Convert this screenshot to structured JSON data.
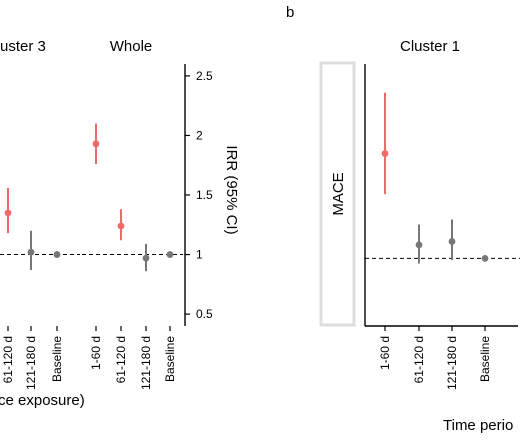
{
  "panel_tags": [
    "b"
  ],
  "x_tick_labels": [
    "1-60 d",
    "61-120 d",
    "121-180 d",
    "Baseline"
  ],
  "left_axis_title": "IRR (95% CI)",
  "left_xlabel_fragment": "ce exposure)",
  "right_xlabel_fragment": "Time perio",
  "strip_label": "MACE",
  "colors": {
    "highlight": "#f0696a",
    "neutral": "#777777",
    "strip_border": "#dddddd"
  },
  "chart_data": [
    {
      "type": "scatter",
      "title": "uster 3",
      "categories": [
        "61-120 d",
        "121-180 d",
        "Baseline"
      ],
      "points": [
        {
          "x": "61-120 d",
          "y": 1.35,
          "lo": 1.18,
          "hi": 1.56,
          "highlight": true
        },
        {
          "x": "121-180 d",
          "y": 1.02,
          "lo": 0.87,
          "hi": 1.2,
          "highlight": false
        },
        {
          "x": "Baseline",
          "y": 1.0,
          "lo": 1.0,
          "hi": 1.0,
          "highlight": false
        }
      ],
      "reference_line": 1,
      "ylim": [
        0.4,
        2.6
      ]
    },
    {
      "type": "scatter",
      "title": "Whole",
      "categories": [
        "1-60 d",
        "61-120 d",
        "121-180 d",
        "Baseline"
      ],
      "points": [
        {
          "x": "1-60 d",
          "y": 1.93,
          "lo": 1.76,
          "hi": 2.1,
          "highlight": true
        },
        {
          "x": "61-120 d",
          "y": 1.24,
          "lo": 1.12,
          "hi": 1.38,
          "highlight": true
        },
        {
          "x": "121-180 d",
          "y": 0.97,
          "lo": 0.86,
          "hi": 1.09,
          "highlight": false
        },
        {
          "x": "Baseline",
          "y": 1.0,
          "lo": 1.0,
          "hi": 1.0,
          "highlight": false
        }
      ],
      "reference_line": 1,
      "yticks": [
        "0.5",
        "1",
        "1.5",
        "2",
        "2.5"
      ],
      "ylabel": "IRR (95% CI)",
      "ylim": [
        0.4,
        2.6
      ]
    },
    {
      "type": "scatter",
      "title": "Cluster 1",
      "categories": [
        "1-60 d",
        "61-120 d",
        "121-180 d",
        "Baseline"
      ],
      "points": [
        {
          "x": "1-60 d",
          "y": 1.62,
          "lo": 1.38,
          "hi": 1.98,
          "highlight": true
        },
        {
          "x": "61-120 d",
          "y": 1.08,
          "lo": 0.97,
          "hi": 1.2,
          "highlight": false
        },
        {
          "x": "121-180 d",
          "y": 1.1,
          "lo": 0.99,
          "hi": 1.23,
          "highlight": false
        },
        {
          "x": "Baseline",
          "y": 1.0,
          "lo": 1.0,
          "hi": 1.0,
          "highlight": false
        }
      ],
      "reference_line": 1,
      "ylim": [
        0.6,
        2.15
      ]
    }
  ]
}
